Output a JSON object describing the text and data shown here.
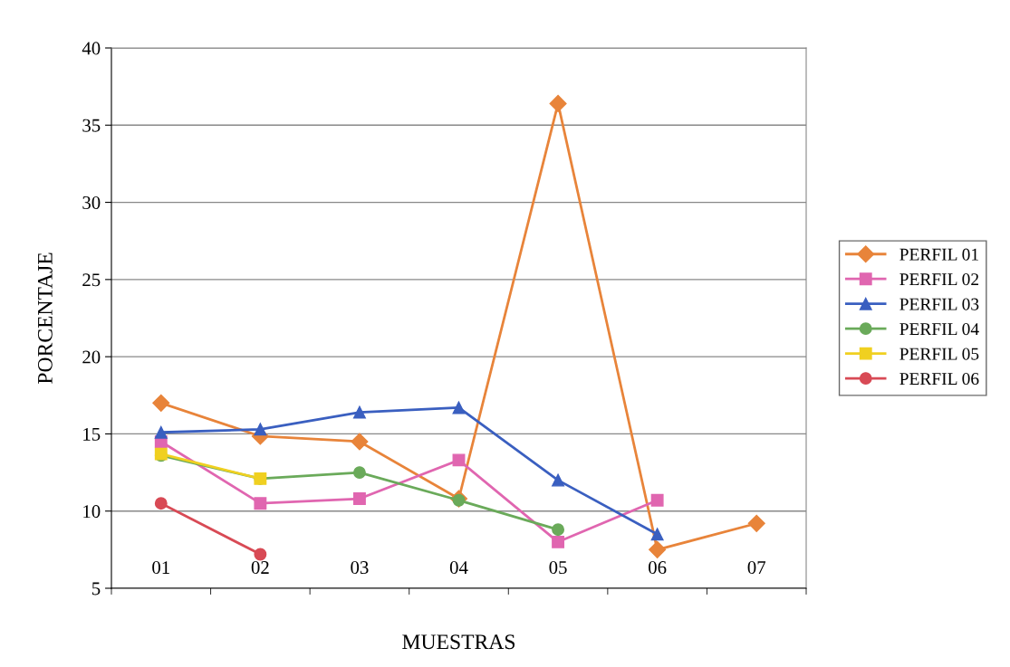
{
  "chart_data": {
    "type": "line",
    "xlabel": "MUESTRAS",
    "ylabel": "PORCENTAJE",
    "categories": [
      "01",
      "02",
      "03",
      "04",
      "05",
      "06",
      "07"
    ],
    "ylim": [
      5,
      40
    ],
    "yticks": [
      5,
      10,
      15,
      20,
      25,
      30,
      35,
      40
    ],
    "grid": "y",
    "legend": "right",
    "series": [
      {
        "name": "PERFIL 01",
        "color": "#e8843a",
        "marker": "diamond",
        "values": [
          17.0,
          14.85,
          14.5,
          10.8,
          36.4,
          7.5,
          9.2
        ]
      },
      {
        "name": "PERFIL 02",
        "color": "#e066b0",
        "marker": "square",
        "values": [
          14.5,
          10.5,
          10.8,
          13.3,
          8.0,
          10.7,
          null
        ]
      },
      {
        "name": "PERFIL 03",
        "color": "#3a5fc0",
        "marker": "triangle",
        "values": [
          15.1,
          15.3,
          16.4,
          16.7,
          12.0,
          8.5,
          null
        ]
      },
      {
        "name": "PERFIL 04",
        "color": "#6aaa5a",
        "marker": "circle",
        "values": [
          13.6,
          12.1,
          12.5,
          10.7,
          8.8,
          null,
          null
        ]
      },
      {
        "name": "PERFIL 05",
        "color": "#f0d020",
        "marker": "square",
        "values": [
          13.7,
          12.1,
          null,
          null,
          null,
          null,
          null
        ]
      },
      {
        "name": "PERFIL 06",
        "color": "#d84a55",
        "marker": "circle",
        "values": [
          10.5,
          7.2,
          null,
          null,
          null,
          null,
          null
        ]
      }
    ]
  }
}
